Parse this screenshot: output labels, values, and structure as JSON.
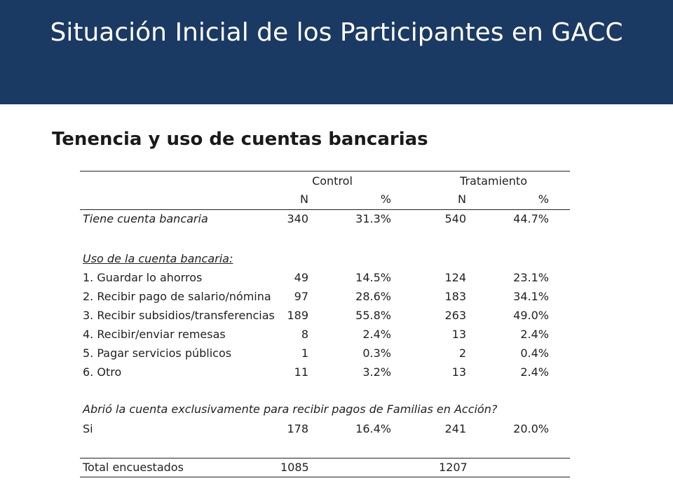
{
  "header": {
    "title": "Situación Inicial de los Participantes en GACC"
  },
  "subtitle": "Tenencia y uso de cuentas bancarias",
  "table": {
    "group_headers": [
      "Control",
      "Tratamiento"
    ],
    "sub_headers": [
      "N",
      "%",
      "N",
      "%"
    ],
    "tiene": {
      "label": "Tiene cuenta bancaria",
      "cn": "340",
      "cp": "31.3%",
      "tn": "540",
      "tp": "44.7%"
    },
    "uso_heading": "Uso de la cuenta bancaria:",
    "uses": [
      {
        "label": "1. Guardar lo ahorros",
        "cn": "49",
        "cp": "14.5%",
        "tn": "124",
        "tp": "23.1%"
      },
      {
        "label": "2. Recibir pago de salario/nómina",
        "cn": "97",
        "cp": "28.6%",
        "tn": "183",
        "tp": "34.1%"
      },
      {
        "label": "3. Recibir subsidios/transferencias",
        "cn": "189",
        "cp": "55.8%",
        "tn": "263",
        "tp": "49.0%"
      },
      {
        "label": "4. Recibir/enviar remesas",
        "cn": "8",
        "cp": "2.4%",
        "tn": "13",
        "tp": "2.4%"
      },
      {
        "label": "5. Pagar servicios públicos",
        "cn": "1",
        "cp": "0.3%",
        "tn": "2",
        "tp": "0.4%"
      },
      {
        "label": "6. Otro",
        "cn": "11",
        "cp": "3.2%",
        "tn": "13",
        "tp": "2.4%"
      }
    ],
    "question": "Abrió la cuenta exclusivamente para recibir pagos de Familias en Acción?",
    "si": {
      "label": "Si",
      "cn": "178",
      "cp": "16.4%",
      "tn": "241",
      "tp": "20.0%"
    },
    "total": {
      "label": "Total encuestados",
      "cn": "1085",
      "tn": "1207"
    }
  }
}
